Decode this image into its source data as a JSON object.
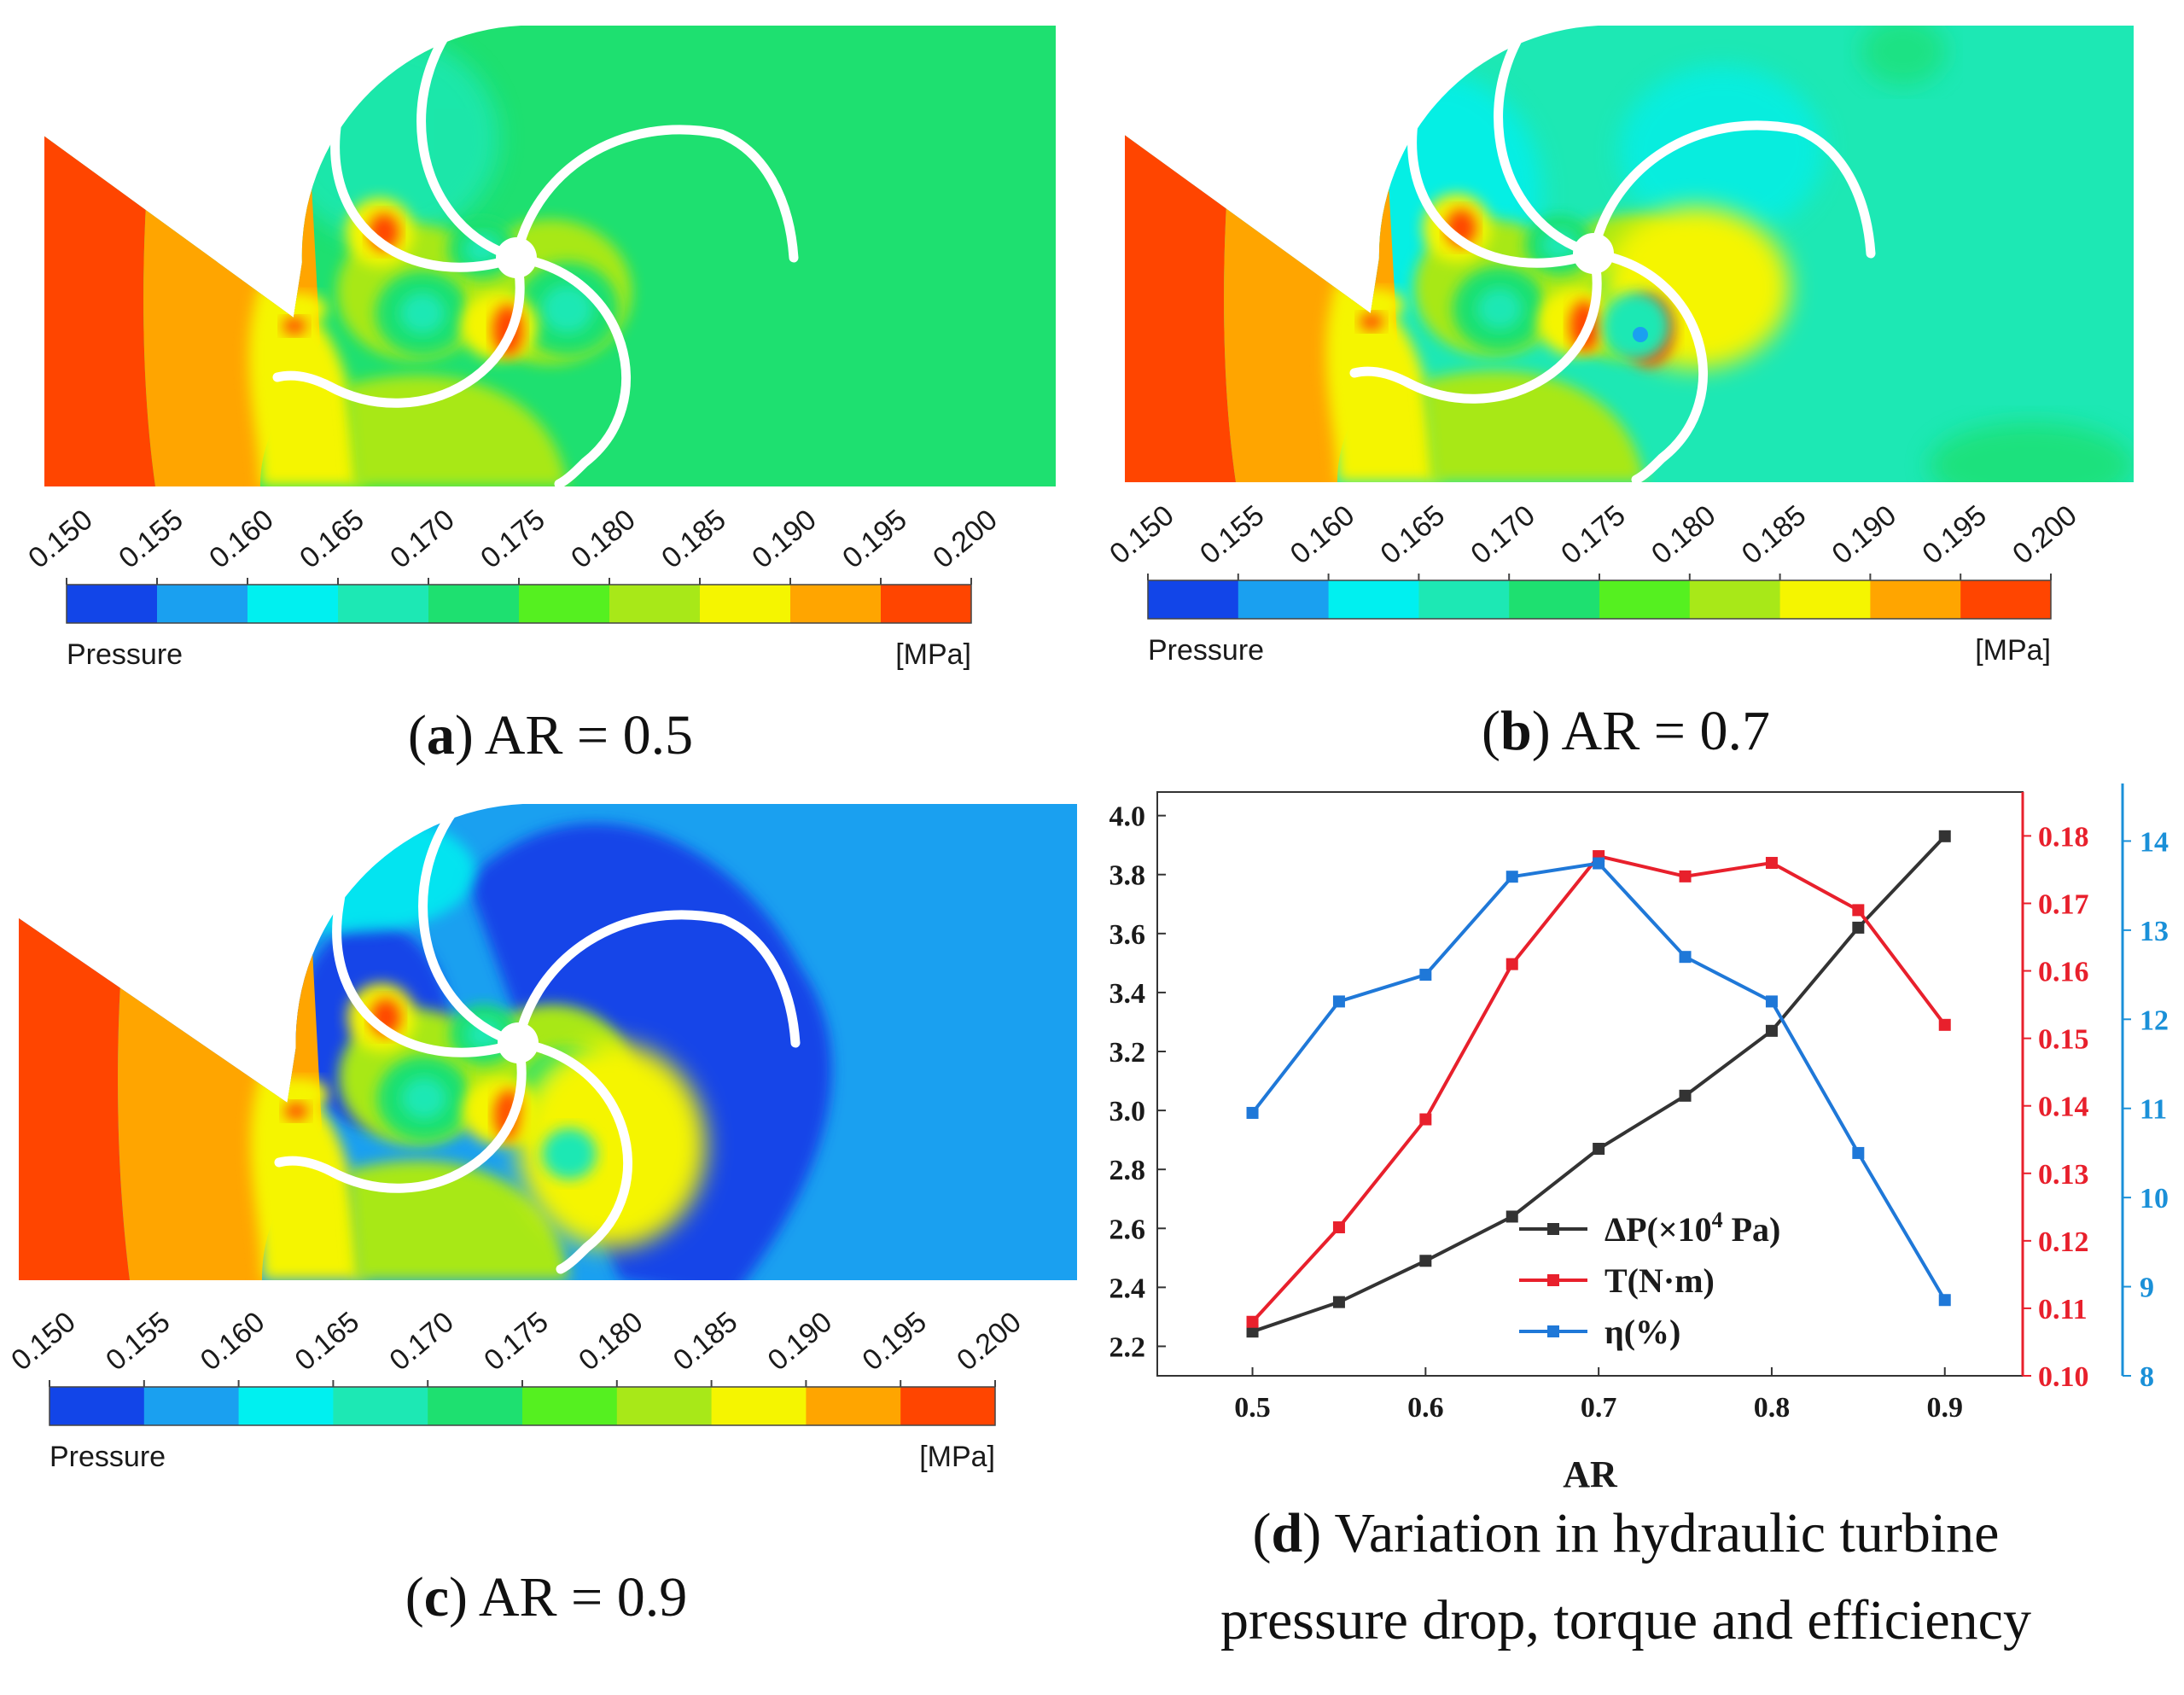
{
  "contour_panels": [
    {
      "caption": {
        "letter": "a",
        "open": "(",
        "close": ")",
        "text": " AR = 0.5"
      },
      "legend": {
        "name": "Pressure",
        "unit": "[MPa]",
        "ticks": [
          "0.150",
          "0.155",
          "0.160",
          "0.165",
          "0.170",
          "0.175",
          "0.180",
          "0.185",
          "0.190",
          "0.195",
          "0.200"
        ]
      }
    },
    {
      "caption": {
        "letter": "b",
        "open": "(",
        "close": ")",
        "text": " AR = 0.7"
      },
      "legend": {
        "name": "Pressure",
        "unit": "[MPa]",
        "ticks": [
          "0.150",
          "0.155",
          "0.160",
          "0.165",
          "0.170",
          "0.175",
          "0.180",
          "0.185",
          "0.190",
          "0.195",
          "0.200"
        ]
      }
    },
    {
      "caption": {
        "letter": "c",
        "open": "(",
        "close": ")",
        "text": " AR = 0.9"
      },
      "legend": {
        "name": "Pressure",
        "unit": "[MPa]",
        "ticks": [
          "0.150",
          "0.155",
          "0.160",
          "0.165",
          "0.170",
          "0.175",
          "0.180",
          "0.185",
          "0.190",
          "0.195",
          "0.200"
        ]
      }
    }
  ],
  "colorbar": [
    "#1245e8",
    "#1aa0f0",
    "#00f0f0",
    "#1de8b4",
    "#1ee070",
    "#55f020",
    "#a8e818",
    "#f5f500",
    "#ffa500",
    "#ff4500"
  ],
  "field_colors": {
    "red": "#ff4500",
    "orange": "#ffa500",
    "yellow": "#f5f500",
    "yellowgreen": "#a8e818",
    "green": "#1ee070",
    "lime": "#55f020",
    "teal": "#1de8b4",
    "cyan": "#00f0f0",
    "lightblue": "#1aa0f0",
    "blue": "#1245e8"
  },
  "chart_caption": {
    "letter": "d",
    "open": "(",
    "close": ")",
    "line1": " Variation in hydraulic turbine",
    "line2": "pressure drop, torque and efficiency"
  },
  "chart_data": {
    "type": "line",
    "title": "",
    "xlabel": "AR",
    "x": [
      0.5,
      0.55,
      0.6,
      0.65,
      0.7,
      0.75,
      0.8,
      0.85,
      0.9
    ],
    "xticks": [
      "0.5",
      "0.6",
      "0.7",
      "0.8",
      "0.9"
    ],
    "xtick_values": [
      0.5,
      0.6,
      0.7,
      0.8,
      0.9
    ],
    "xlim": [
      0.445,
      0.945
    ],
    "axes": {
      "left": {
        "ylim": [
          2.1,
          4.08
        ],
        "ticks": [
          "2.2",
          "2.4",
          "2.6",
          "2.8",
          "3.0",
          "3.2",
          "3.4",
          "3.6",
          "3.8",
          "4.0"
        ],
        "tick_values": [
          2.2,
          2.4,
          2.6,
          2.8,
          3.0,
          3.2,
          3.4,
          3.6,
          3.8,
          4.0
        ],
        "color": "#1a1a1a"
      },
      "right1": {
        "ylim": [
          0.1,
          0.1865
        ],
        "ticks": [
          "0.10",
          "0.11",
          "0.12",
          "0.13",
          "0.14",
          "0.15",
          "0.16",
          "0.17",
          "0.18"
        ],
        "tick_values": [
          0.1,
          0.11,
          0.12,
          0.13,
          0.14,
          0.15,
          0.16,
          0.17,
          0.18
        ],
        "color": "#e8202c"
      },
      "right2": {
        "ylim": [
          8.0,
          14.55
        ],
        "ticks": [
          "8",
          "9",
          "10",
          "11",
          "12",
          "13",
          "14"
        ],
        "tick_values": [
          8,
          9,
          10,
          11,
          12,
          13,
          14
        ],
        "color": "#1a90d8"
      }
    },
    "series": [
      {
        "name": "ΔP(×10",
        "name_sup": "4",
        "name_tail": " Pa)",
        "axis": "left",
        "color": "#333333",
        "values": [
          2.25,
          2.35,
          2.49,
          2.64,
          2.87,
          3.05,
          3.27,
          3.62,
          3.93
        ]
      },
      {
        "name": "T(N·m)",
        "name_sup": "",
        "name_tail": "",
        "axis": "right1",
        "color": "#e8202c",
        "values": [
          0.108,
          0.122,
          0.138,
          0.161,
          0.177,
          0.174,
          0.176,
          0.169,
          0.152
        ]
      },
      {
        "name": "η(%)",
        "name_sup": "",
        "name_tail": "",
        "axis": "right2",
        "color": "#1f78d8",
        "values": [
          10.95,
          12.2,
          12.5,
          13.6,
          13.75,
          12.7,
          12.2,
          10.5,
          8.85
        ]
      }
    ],
    "legend_position": "lower-center"
  }
}
